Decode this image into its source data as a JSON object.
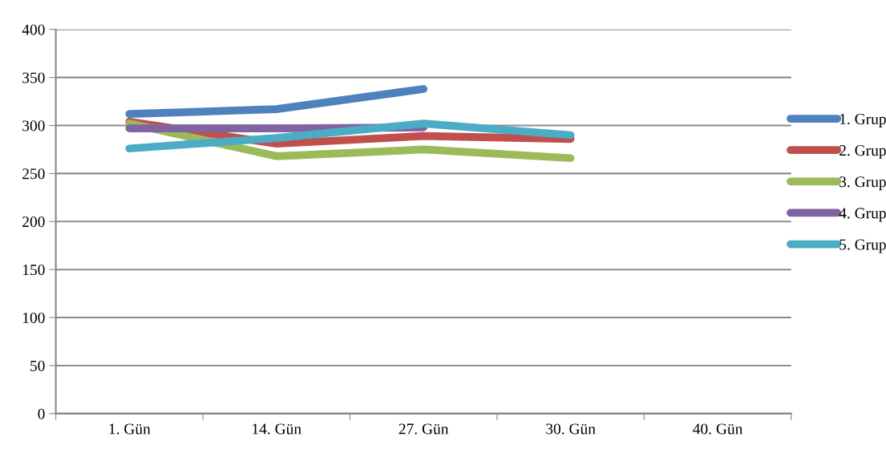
{
  "chart_data": {
    "type": "line",
    "categories": [
      "1. Gün",
      "14. Gün",
      "27. Gün",
      "30. Gün",
      "40. Gün"
    ],
    "series": [
      {
        "name": "1. Grup",
        "color": "#4f81bd",
        "values": [
          312,
          317,
          338,
          null,
          null
        ]
      },
      {
        "name": "2. Grup",
        "color": "#c0504d",
        "values": [
          304,
          281,
          289,
          286,
          null
        ]
      },
      {
        "name": "3. Grup",
        "color": "#9bbb59",
        "values": [
          302,
          268,
          275,
          266,
          null
        ]
      },
      {
        "name": "4. Grup",
        "color": "#8064a2",
        "values": [
          297,
          297,
          298,
          null,
          null
        ]
      },
      {
        "name": "5. Grup",
        "color": "#4bacc6",
        "values": [
          276,
          287,
          302,
          290,
          null
        ]
      }
    ],
    "ylim": [
      0,
      400
    ],
    "yticks": [
      0,
      50,
      100,
      150,
      200,
      250,
      300,
      350,
      400
    ],
    "grid": "y",
    "legend": "right",
    "marker": "none",
    "line_style": "solid"
  }
}
